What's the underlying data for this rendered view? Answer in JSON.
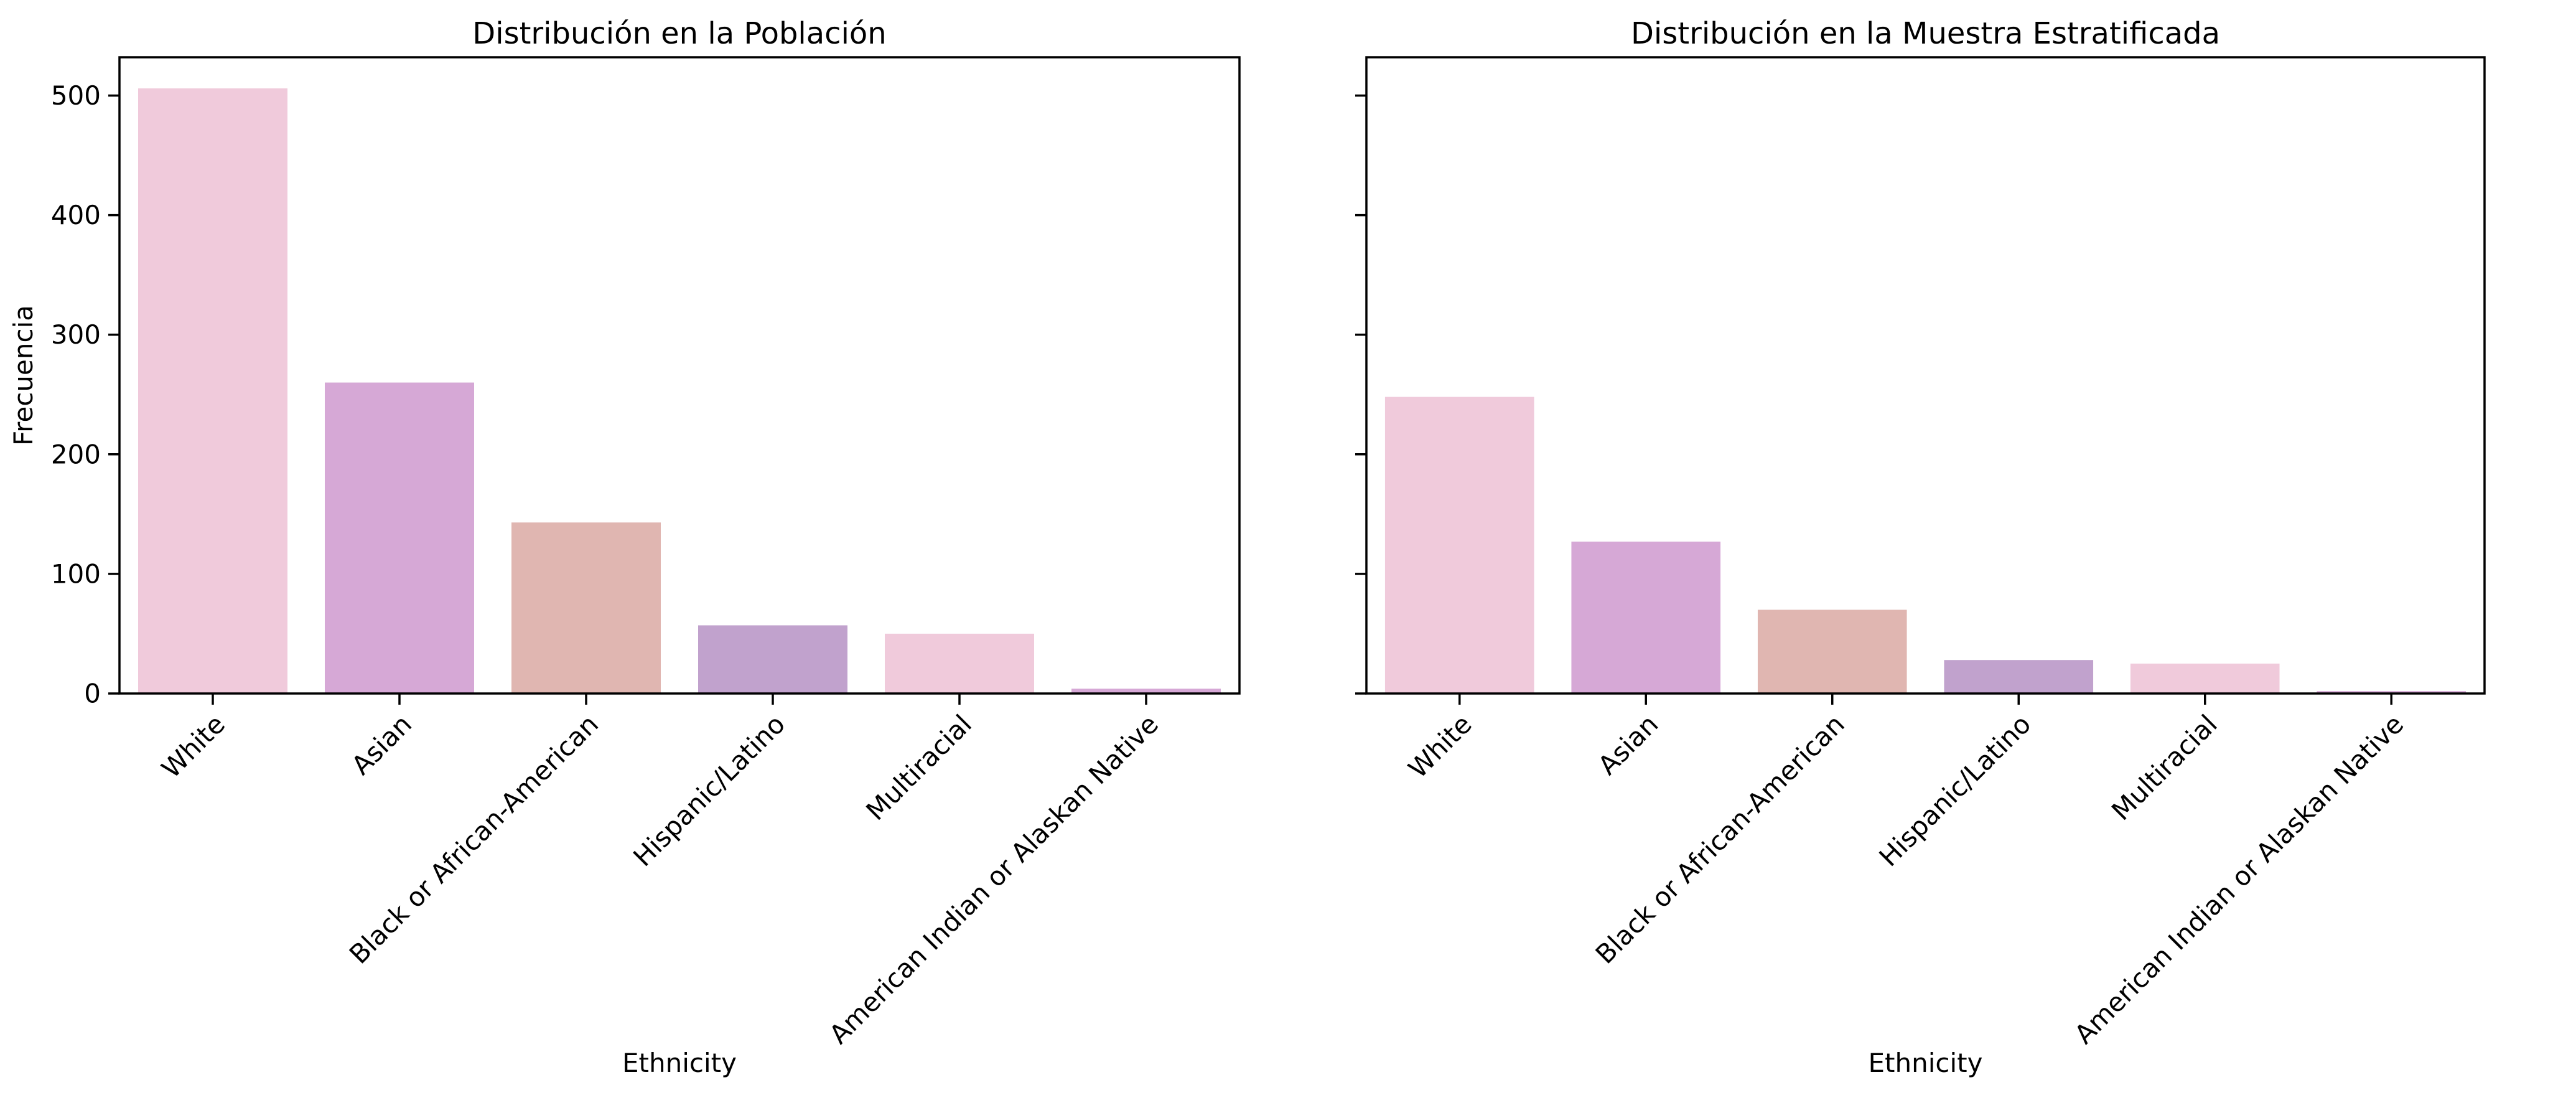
{
  "chart_data": [
    {
      "type": "bar",
      "title": "Distribución en la Población",
      "xlabel": "Ethnicity",
      "ylabel": "Frecuencia",
      "categories": [
        "White",
        "Asian",
        "Black or African-American",
        "Hispanic/Latino",
        "Multiracial",
        "American Indian or Alaskan Native"
      ],
      "values": [
        506,
        260,
        143,
        57,
        50,
        4
      ],
      "colors": [
        "#f0cadb",
        "#d6a8d6",
        "#e0b6b1",
        "#c1a2cd",
        "#f0cadb",
        "#d6a8d6"
      ],
      "ylim": [
        0,
        532
      ],
      "yticks": [
        0,
        100,
        200,
        300,
        400,
        500
      ],
      "show_ytick_labels": true,
      "grid": false
    },
    {
      "type": "bar",
      "title": "Distribución en la Muestra Estratificada",
      "xlabel": "Ethnicity",
      "ylabel": "",
      "categories": [
        "White",
        "Asian",
        "Black or African-American",
        "Hispanic/Latino",
        "Multiracial",
        "American Indian or Alaskan Native"
      ],
      "values": [
        248,
        127,
        70,
        28,
        25,
        2
      ],
      "colors": [
        "#f0cadb",
        "#d6a8d6",
        "#e0b6b1",
        "#c1a2cd",
        "#f0cadb",
        "#d6a8d6"
      ],
      "ylim": [
        0,
        532
      ],
      "yticks": [
        0,
        100,
        200,
        300,
        400,
        500
      ],
      "show_ytick_labels": false,
      "grid": false
    }
  ]
}
